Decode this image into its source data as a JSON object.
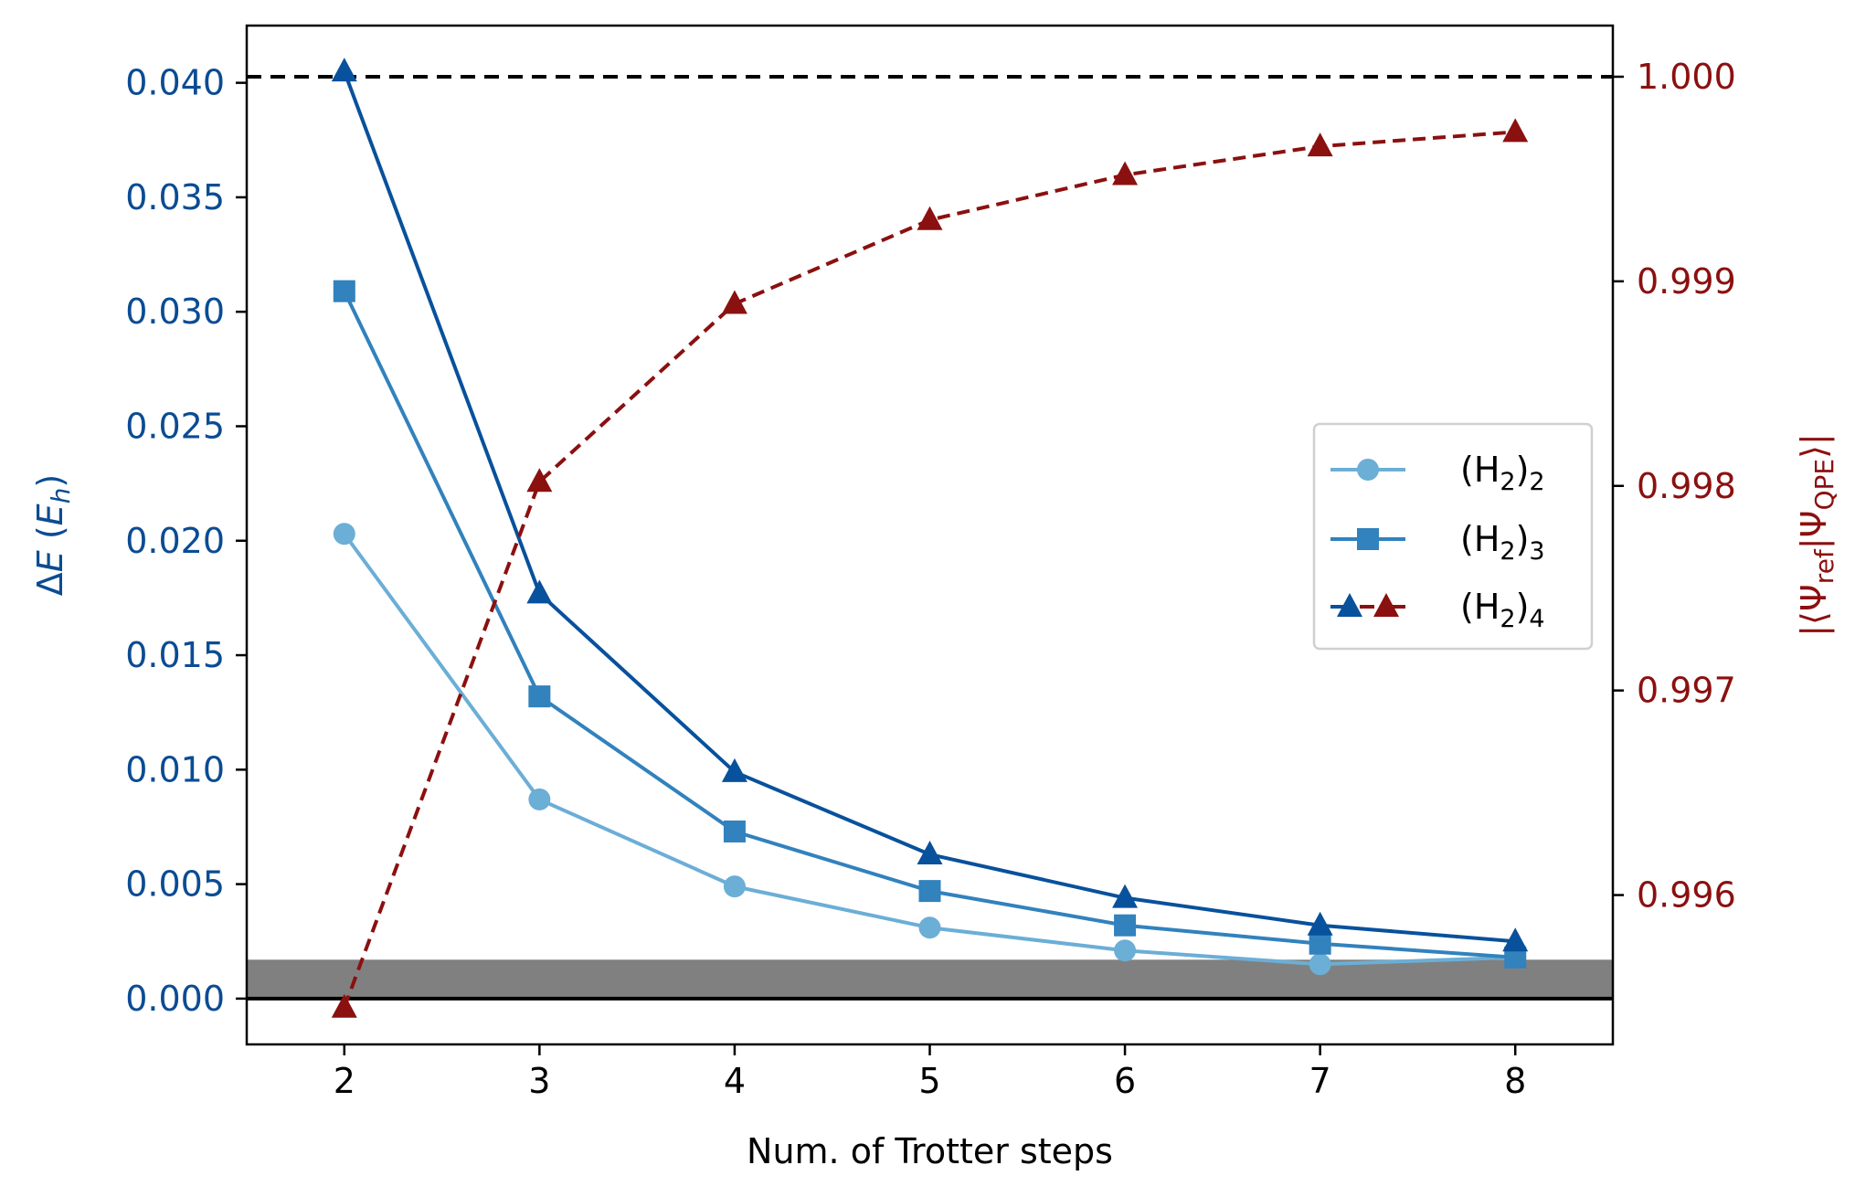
{
  "chart_data": {
    "type": "line",
    "xlabel": "Num. of Trotter steps",
    "ylabel_left": "ΔE (E_h)",
    "ylabel_right": "|⟨Ψ_ref|Ψ_QPE⟩|",
    "x": [
      2,
      3,
      4,
      5,
      6,
      7,
      8
    ],
    "xlim": [
      1.5,
      8.5
    ],
    "xticks": [
      "2",
      "3",
      "4",
      "5",
      "6",
      "7",
      "8"
    ],
    "ylim_left": [
      -0.002,
      0.0425
    ],
    "yticks_left": [
      "0.000",
      "0.005",
      "0.010",
      "0.015",
      "0.020",
      "0.025",
      "0.030",
      "0.035",
      "0.040"
    ],
    "ylim_right": [
      0.99527,
      1.00025
    ],
    "yticks_right": [
      "0.996",
      "0.997",
      "0.998",
      "0.999",
      "1.000"
    ],
    "series": [
      {
        "name": "(H2)2",
        "axis": "left",
        "marker": "circle",
        "color": "#6baed6",
        "values": [
          0.0203,
          0.0087,
          0.0049,
          0.0031,
          0.0021,
          0.0015,
          0.0018
        ]
      },
      {
        "name": "(H2)3",
        "axis": "left",
        "marker": "square",
        "color": "#3182bd",
        "values": [
          0.0309,
          0.0132,
          0.0073,
          0.0047,
          0.0032,
          0.0024,
          0.0018
        ]
      },
      {
        "name": "(H2)4",
        "axis": "left",
        "marker": "triangle",
        "color": "#08519c",
        "values": [
          0.0405,
          0.0177,
          0.0099,
          0.0063,
          0.0044,
          0.0032,
          0.0025
        ]
      },
      {
        "name": "(H2)4",
        "axis": "right",
        "marker": "triangle",
        "color": "#8b1010",
        "dashed": true,
        "values": [
          0.99545,
          0.99802,
          0.99889,
          0.9993,
          0.99952,
          0.99966,
          0.99973
        ]
      }
    ],
    "reference_lines": {
      "left_zero": 0.0,
      "right_one": 1.0
    },
    "shaded_band_left": [
      -0.002,
      0.0017
    ],
    "legend": {
      "placement": "center-right",
      "entries": [
        {
          "base": "(H",
          "sub": "2",
          "close": ")",
          "sub2": "2"
        },
        {
          "base": "(H",
          "sub": "2",
          "close": ")",
          "sub2": "3"
        },
        {
          "base": "(H",
          "sub": "2",
          "close": ")",
          "sub2": "4"
        }
      ]
    },
    "colors": {
      "left_axis": "#0b4c93",
      "right_axis": "#8b1010",
      "band": "#808080"
    }
  }
}
